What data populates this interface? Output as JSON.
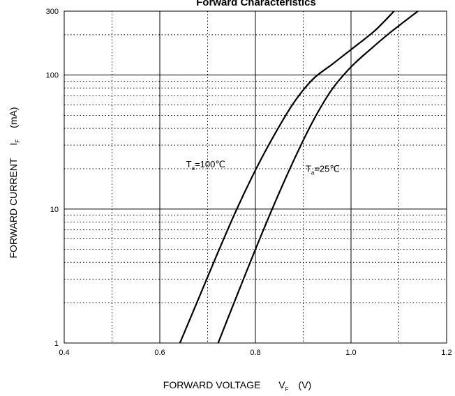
{
  "chart_data": {
    "type": "line",
    "title": "Forward    Characteristics",
    "xlabel": {
      "main": "FORWARD VOLTAGE",
      "symbol": "V",
      "sub": "F",
      "unit": "(V)"
    },
    "ylabel": {
      "main": "FORWARD CURRENT",
      "symbol": "I",
      "sub": "F",
      "unit": "(mA)"
    },
    "xlim": [
      0.4,
      1.2
    ],
    "ylim": [
      1,
      300
    ],
    "yscale": "log",
    "xticks": [
      0.4,
      0.6,
      0.8,
      1.0,
      1.2
    ],
    "xtick_labels": [
      "0.4",
      "0.6",
      "0.8",
      "1.0",
      "1.2"
    ],
    "xminor": [
      0.5,
      0.7,
      0.9,
      1.1
    ],
    "yticks": [
      1,
      10,
      100,
      300
    ],
    "ytick_labels": [
      "1",
      "10",
      "100",
      "300"
    ],
    "ymajor_grid": [
      10,
      100
    ],
    "yminor_grid": [
      2,
      3,
      4,
      5,
      6,
      7,
      8,
      9,
      20,
      30,
      40,
      50,
      60,
      70,
      80,
      90,
      200
    ],
    "grid": true,
    "series": [
      {
        "name": "Ta=100℃",
        "label": {
          "T": "T",
          "sub": "a",
          "rest": "=100℃",
          "x": 0.655,
          "y": 20.5
        },
        "x": [
          0.642,
          0.68,
          0.72,
          0.76,
          0.8,
          0.84,
          0.88,
          0.92,
          0.96,
          1.0,
          1.05,
          1.09
        ],
        "y": [
          1.0,
          2.1,
          4.6,
          9.8,
          19.5,
          36,
          62,
          93,
          120,
          155,
          215,
          300
        ]
      },
      {
        "name": "Ta=25℃",
        "label": {
          "T": "T",
          "sub": "a",
          "rest": "=25℃",
          "x": 0.905,
          "y": 19
        },
        "x": [
          0.722,
          0.76,
          0.8,
          0.84,
          0.88,
          0.92,
          0.96,
          1.0,
          1.04,
          1.08,
          1.14
        ],
        "y": [
          1.0,
          2.2,
          5.0,
          11.0,
          23.0,
          45.0,
          78.0,
          115.0,
          155.0,
          205.0,
          300.0
        ]
      }
    ]
  }
}
